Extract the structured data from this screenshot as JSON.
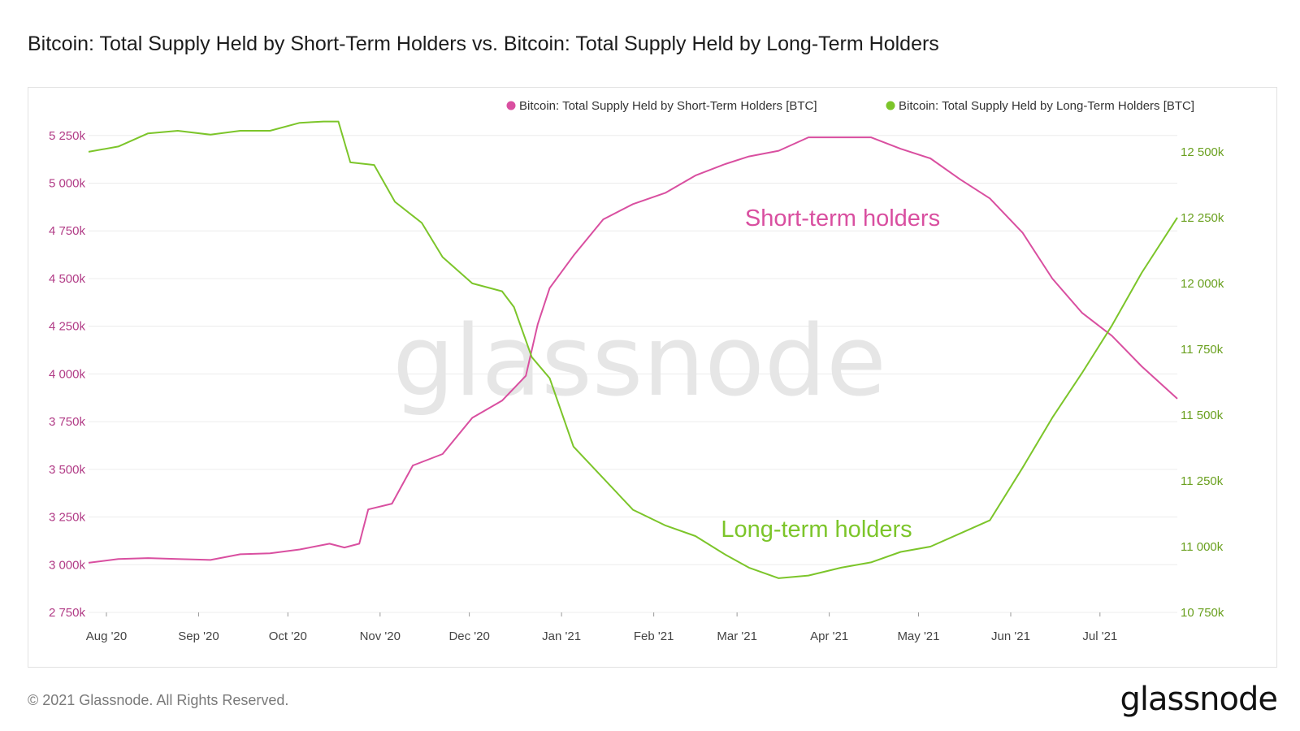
{
  "title": "Bitcoin: Total Supply Held by Short-Term Holders vs. Bitcoin: Total Supply Held by Long-Term Holders",
  "footer": "© 2021 Glassnode. All Rights Reserved.",
  "brand": "glassnode",
  "watermark": "glassnode",
  "colors": {
    "short_term": "#d94fa0",
    "long_term": "#7cc52a",
    "left_axis": "#b13b86",
    "right_axis": "#6aa01f"
  },
  "chart_data": {
    "type": "line",
    "legend_position": "top-right",
    "grid": true,
    "x_ticks": [
      "Aug '20",
      "Sep '20",
      "Oct '20",
      "Nov '20",
      "Dec '20",
      "Jan '21",
      "Feb '21",
      "Mar '21",
      "Apr '21",
      "May '21",
      "Jun '21",
      "Jul '21"
    ],
    "x_range": [
      "2020-07-26",
      "2021-07-27"
    ],
    "y_left": {
      "ticks": [
        "2 750k",
        "3 000k",
        "3 250k",
        "3 500k",
        "3 750k",
        "4 000k",
        "4 250k",
        "4 500k",
        "4 750k",
        "5 000k",
        "5 250k"
      ],
      "range": [
        2750,
        5330
      ]
    },
    "y_right": {
      "ticks": [
        "10 750k",
        "11 000k",
        "11 250k",
        "11 500k",
        "11 750k",
        "12 000k",
        "12 250k",
        "12 500k"
      ],
      "range": [
        10750,
        12620
      ]
    },
    "annotations": [
      "Short-term holders",
      "Long-term holders"
    ],
    "series": [
      {
        "name": "Bitcoin: Total Supply Held by Short-Term Holders [BTC]",
        "axis": "left",
        "points": [
          [
            "2020-07-26",
            3010
          ],
          [
            "2020-08-05",
            3030
          ],
          [
            "2020-08-15",
            3035
          ],
          [
            "2020-08-25",
            3030
          ],
          [
            "2020-09-05",
            3025
          ],
          [
            "2020-09-15",
            3055
          ],
          [
            "2020-09-25",
            3060
          ],
          [
            "2020-10-05",
            3080
          ],
          [
            "2020-10-15",
            3110
          ],
          [
            "2020-10-20",
            3090
          ],
          [
            "2020-10-25",
            3110
          ],
          [
            "2020-10-28",
            3290
          ],
          [
            "2020-11-05",
            3320
          ],
          [
            "2020-11-12",
            3520
          ],
          [
            "2020-11-22",
            3580
          ],
          [
            "2020-12-02",
            3770
          ],
          [
            "2020-12-12",
            3860
          ],
          [
            "2020-12-20",
            3990
          ],
          [
            "2020-12-24",
            4260
          ],
          [
            "2020-12-28",
            4450
          ],
          [
            "2021-01-05",
            4620
          ],
          [
            "2021-01-15",
            4810
          ],
          [
            "2021-01-25",
            4890
          ],
          [
            "2021-02-05",
            4950
          ],
          [
            "2021-02-15",
            5040
          ],
          [
            "2021-02-25",
            5100
          ],
          [
            "2021-03-05",
            5140
          ],
          [
            "2021-03-15",
            5170
          ],
          [
            "2021-03-25",
            5240
          ],
          [
            "2021-04-05",
            5240
          ],
          [
            "2021-04-15",
            5240
          ],
          [
            "2021-04-25",
            5180
          ],
          [
            "2021-05-05",
            5130
          ],
          [
            "2021-05-15",
            5020
          ],
          [
            "2021-05-25",
            4920
          ],
          [
            "2021-06-05",
            4740
          ],
          [
            "2021-06-15",
            4500
          ],
          [
            "2021-06-25",
            4320
          ],
          [
            "2021-07-05",
            4200
          ],
          [
            "2021-07-15",
            4040
          ],
          [
            "2021-07-27",
            3870
          ]
        ]
      },
      {
        "name": "Bitcoin: Total Supply Held by Long-Term Holders [BTC]",
        "axis": "right",
        "points": [
          [
            "2020-07-26",
            12500
          ],
          [
            "2020-08-05",
            12520
          ],
          [
            "2020-08-15",
            12570
          ],
          [
            "2020-08-25",
            12580
          ],
          [
            "2020-09-05",
            12565
          ],
          [
            "2020-09-15",
            12580
          ],
          [
            "2020-09-25",
            12580
          ],
          [
            "2020-10-05",
            12610
          ],
          [
            "2020-10-13",
            12615
          ],
          [
            "2020-10-18",
            12615
          ],
          [
            "2020-10-22",
            12460
          ],
          [
            "2020-10-30",
            12450
          ],
          [
            "2020-11-06",
            12310
          ],
          [
            "2020-11-15",
            12230
          ],
          [
            "2020-11-22",
            12100
          ],
          [
            "2020-12-02",
            12000
          ],
          [
            "2020-12-12",
            11970
          ],
          [
            "2020-12-16",
            11910
          ],
          [
            "2020-12-22",
            11720
          ],
          [
            "2020-12-28",
            11640
          ],
          [
            "2021-01-05",
            11380
          ],
          [
            "2021-01-15",
            11260
          ],
          [
            "2021-01-25",
            11140
          ],
          [
            "2021-02-05",
            11080
          ],
          [
            "2021-02-15",
            11040
          ],
          [
            "2021-02-25",
            10970
          ],
          [
            "2021-03-05",
            10920
          ],
          [
            "2021-03-15",
            10880
          ],
          [
            "2021-03-25",
            10890
          ],
          [
            "2021-04-05",
            10920
          ],
          [
            "2021-04-15",
            10940
          ],
          [
            "2021-04-25",
            10980
          ],
          [
            "2021-05-05",
            11000
          ],
          [
            "2021-05-15",
            11050
          ],
          [
            "2021-05-25",
            11100
          ],
          [
            "2021-06-05",
            11300
          ],
          [
            "2021-06-15",
            11490
          ],
          [
            "2021-06-25",
            11660
          ],
          [
            "2021-07-05",
            11840
          ],
          [
            "2021-07-15",
            12040
          ],
          [
            "2021-07-27",
            12250
          ]
        ]
      }
    ]
  }
}
